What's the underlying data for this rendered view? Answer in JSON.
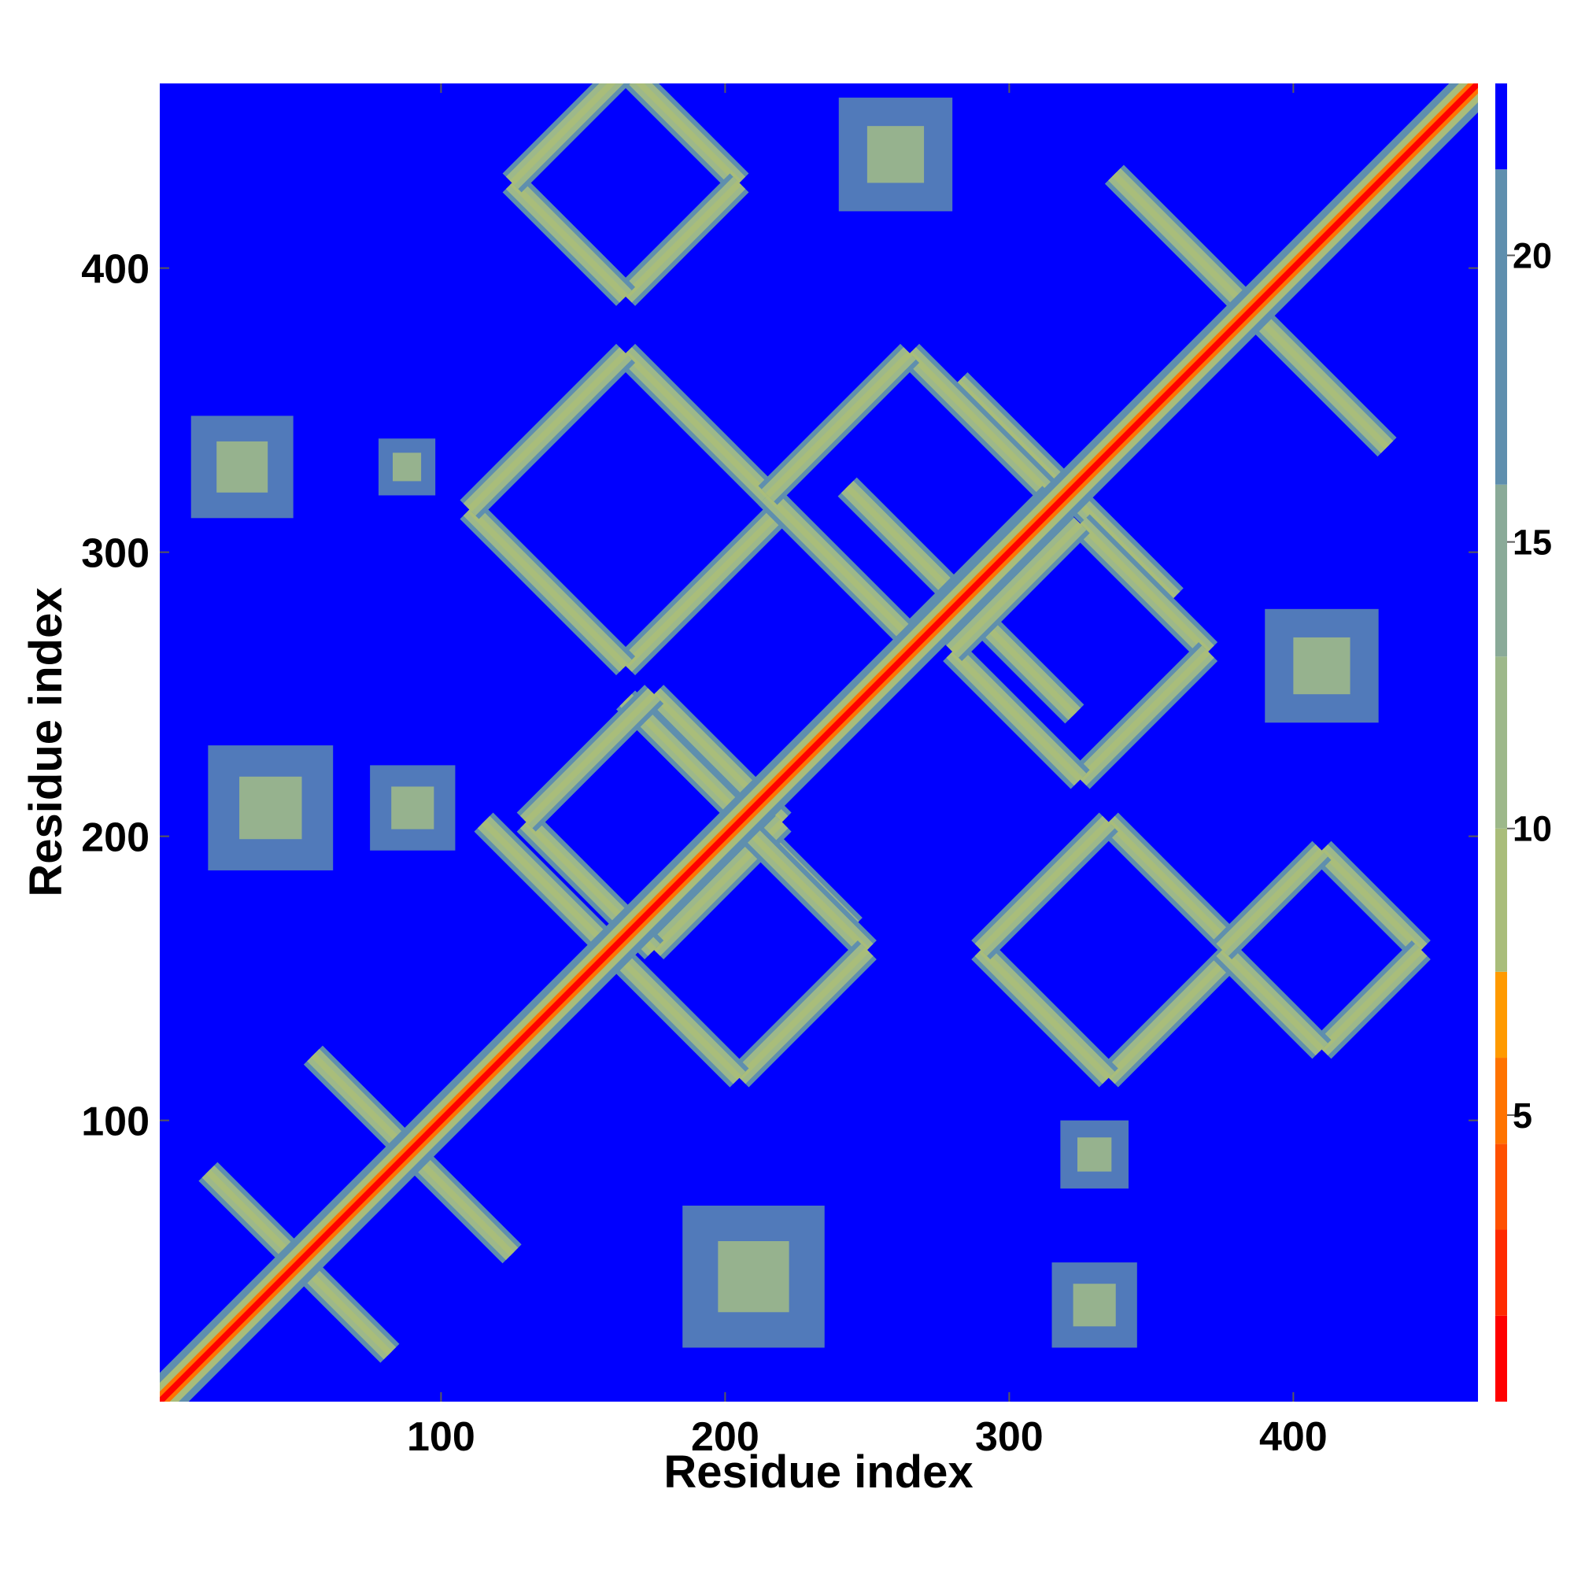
{
  "chart_data": {
    "type": "heatmap",
    "title": "",
    "xlabel": "Residue index",
    "ylabel": "Residue index",
    "xlim": [
      1,
      465
    ],
    "ylim": [
      1,
      465
    ],
    "x_ticks": [
      100,
      200,
      300,
      400
    ],
    "y_ticks": [
      100,
      200,
      300,
      400
    ],
    "x_tick_labels": [
      "100",
      "200",
      "300",
      "400"
    ],
    "y_tick_labels": [
      "100",
      "200",
      "300",
      "400"
    ],
    "grid": false,
    "legend": "none",
    "colorbar": {
      "placement": "right",
      "range": [
        0,
        23
      ],
      "ticks": [
        5,
        10,
        15,
        20
      ],
      "tick_labels": [
        "5",
        "10",
        "15",
        "20"
      ],
      "bands": [
        {
          "from": 0,
          "to": 1.5,
          "color": "#ff0000"
        },
        {
          "from": 1.5,
          "to": 3,
          "color": "#ff2a00"
        },
        {
          "from": 3,
          "to": 4.5,
          "color": "#ff5000"
        },
        {
          "from": 4.5,
          "to": 6,
          "color": "#ff7300"
        },
        {
          "from": 6,
          "to": 7.5,
          "color": "#ff9a00"
        },
        {
          "from": 7.5,
          "to": 10,
          "color": "#a9bd7a"
        },
        {
          "from": 10,
          "to": 13,
          "color": "#9db88a"
        },
        {
          "from": 13,
          "to": 16,
          "color": "#8aaa98"
        },
        {
          "from": 16,
          "to": 21.5,
          "color": "#5f8fae"
        },
        {
          "from": 21.5,
          "to": 23,
          "color": "#0000ff"
        }
      ]
    },
    "background_value": 23,
    "diagonal": {
      "from": 1,
      "to": 465
    },
    "contact_bands": [
      {
        "name": "cross",
        "center": [
          50,
          50
        ],
        "half_length": 32
      },
      {
        "name": "cross",
        "center": [
          90,
          88
        ],
        "half_length": 35
      },
      {
        "name": "cross",
        "center": [
          160,
          160
        ],
        "half_length": 45
      },
      {
        "name": "cross",
        "center": [
          205,
          208
        ],
        "half_length": 40
      },
      {
        "name": "cross",
        "center": [
          283,
          283
        ],
        "half_length": 40
      },
      {
        "name": "cross",
        "center": [
          320,
          322
        ],
        "half_length": 38
      },
      {
        "name": "cross",
        "center": [
          385,
          385
        ],
        "half_length": 48
      },
      {
        "name": "diamond",
        "center": [
          175,
          205
        ],
        "half_length": 45
      },
      {
        "name": "diamond",
        "center": [
          165,
          315
        ],
        "half_length": 55
      },
      {
        "name": "diamond",
        "center": [
          265,
          320
        ],
        "half_length": 50
      },
      {
        "name": "diamond",
        "center": [
          325,
          265
        ],
        "half_length": 45
      },
      {
        "name": "diamond",
        "center": [
          205,
          160
        ],
        "half_length": 45
      },
      {
        "name": "diamond",
        "center": [
          335,
          160
        ],
        "half_length": 45
      },
      {
        "name": "diamond",
        "center": [
          410,
          160
        ],
        "half_length": 35
      },
      {
        "name": "diamond",
        "center": [
          165,
          430
        ],
        "half_length": 40
      },
      {
        "name": "patch",
        "center": [
          30,
          330
        ],
        "half_length": 18
      },
      {
        "name": "patch",
        "center": [
          88,
          330
        ],
        "half_length": 10
      },
      {
        "name": "patch",
        "center": [
          40,
          210
        ],
        "half_length": 22
      },
      {
        "name": "patch",
        "center": [
          90,
          210
        ],
        "half_length": 15
      },
      {
        "name": "patch",
        "center": [
          210,
          45
        ],
        "half_length": 25
      },
      {
        "name": "patch",
        "center": [
          330,
          35
        ],
        "half_length": 15
      },
      {
        "name": "patch",
        "center": [
          330,
          88
        ],
        "half_length": 12
      },
      {
        "name": "patch",
        "center": [
          410,
          260
        ],
        "half_length": 20
      },
      {
        "name": "patch",
        "center": [
          260,
          440
        ],
        "half_length": 20
      }
    ]
  }
}
